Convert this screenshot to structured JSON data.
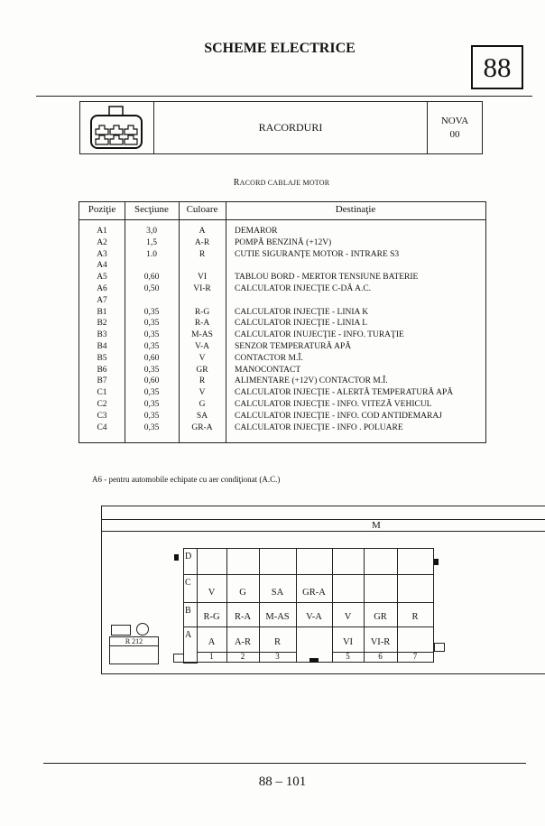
{
  "header": {
    "title": "SCHEME ELECTRICE",
    "chapter": "88"
  },
  "banner": {
    "icon": "connector-icon",
    "title": "RACORDURI",
    "model": "NOVA",
    "code": "00"
  },
  "section_title": {
    "initial": "R",
    "rest": "ACORD CABLAJE MOTOR"
  },
  "table": {
    "columns": [
      "Poziţie",
      "Secţiune",
      "Culoare",
      "Destinaţie"
    ],
    "rows": [
      [
        "A1",
        "3,0",
        "A",
        "DEMAROR"
      ],
      [
        "A2",
        "1,5",
        "A-R",
        "POMPĂ BENZINĂ (+12V)"
      ],
      [
        "A3",
        "1.0",
        "R",
        "CUTIE SIGURANŢE MOTOR - INTRARE S3"
      ],
      [
        "A4",
        "",
        "",
        ""
      ],
      [
        "A5",
        "0,60",
        "VI",
        "TABLOU BORD - MERTOR TENSIUNE BATERIE"
      ],
      [
        "A6",
        "0,50",
        "VI-R",
        "CALCULATOR INJECŢIE  C-DĂ A.C."
      ],
      [
        "A7",
        "",
        "",
        ""
      ],
      [
        "B1",
        "0,35",
        "R-G",
        "CALCULATOR INJECŢIE  - LINIA K"
      ],
      [
        "B2",
        "0,35",
        "R-A",
        "CALCULATOR INJECŢIE  - LINIA L"
      ],
      [
        "B3",
        "0,35",
        "M-AS",
        "CALCULATOR INUJECŢIE   -  INFO.  TURAŢIE"
      ],
      [
        "B4",
        "0,35",
        "V-A",
        "SENZOR TEMPERATURĂ APĂ"
      ],
      [
        "B5",
        "0,60",
        "V",
        "CONTACTOR  M.Î."
      ],
      [
        "B6",
        "0,35",
        "GR",
        "MANOCONTACT"
      ],
      [
        "B7",
        "0,60",
        "R",
        "ALIMENTARE (+12V) CONTACTOR M.Î."
      ],
      [
        "C1",
        "0,35",
        "V",
        "CALCULATOR INJECŢIE - ALERTĂ TEMPERATURĂ APĂ"
      ],
      [
        "C2",
        "0,35",
        "G",
        "CALCULATOR INJECŢIE  - INFO.  VITEZĂ VEHICUL"
      ],
      [
        "C3",
        "0,35",
        "SA",
        "CALCULATOR INJECŢIE - INFO.  COD ANTIDEMARAJ"
      ],
      [
        "C4",
        "0,35",
        "GR-A",
        "CALCULATOR INJECŢIE - INFO .  POLUARE"
      ]
    ]
  },
  "note": "A6 - pentru automobile echipate cu aer condiţionat (A.C.)",
  "diagram": {
    "top_label": "M",
    "relay_label": "R 212",
    "row_labels": [
      "D",
      "C",
      "B",
      "A"
    ],
    "pin_numbers": [
      "1",
      "2",
      "3",
      "",
      "5",
      "6",
      "7"
    ],
    "rows": {
      "D": [
        "",
        "",
        "",
        "",
        "",
        "",
        ""
      ],
      "C": [
        "V",
        "G",
        "SA",
        "GR-A",
        "",
        "",
        ""
      ],
      "B": [
        "R-G",
        "R-A",
        "M-AS",
        "V-A",
        "V",
        "GR",
        "R"
      ],
      "A": [
        "A",
        "A-R",
        "R",
        "",
        "VI",
        "VI-R",
        ""
      ]
    }
  },
  "footer": {
    "page": "88 – 101"
  }
}
